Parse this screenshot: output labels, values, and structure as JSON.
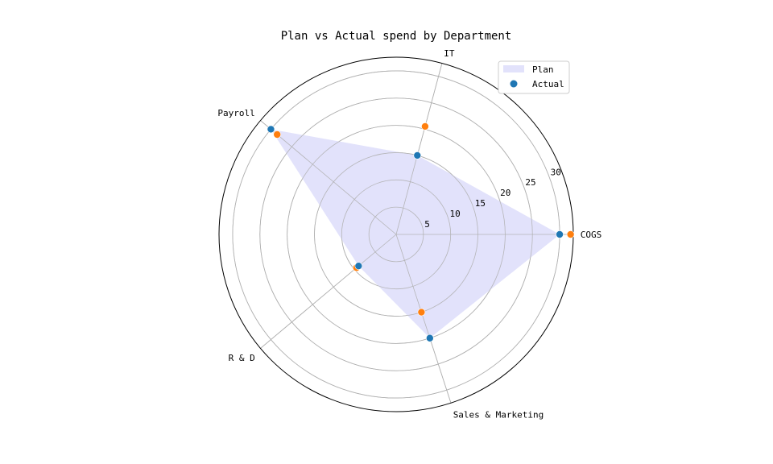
{
  "chart_data": {
    "type": "radar",
    "title": "Plan vs Actual spend by Department",
    "categories": [
      "COGS",
      "IT",
      "Payroll",
      "R & D",
      "Sales & Marketing"
    ],
    "angles_deg": [
      0,
      75,
      140,
      220,
      288
    ],
    "radial_ticks": [
      5,
      10,
      15,
      20,
      25,
      30
    ],
    "rmax": 32.5,
    "series": [
      {
        "name": "Plan",
        "kind": "filled-area",
        "color": "#e2e2fb",
        "values": [
          30,
          15,
          30,
          9,
          20
        ]
      },
      {
        "name": "Actual",
        "kind": "scatter",
        "color": "#1f77b4",
        "values": [
          30,
          15,
          30,
          9,
          20
        ]
      },
      {
        "kind": "scatter",
        "color": "#ff7f0e",
        "values": [
          32,
          20.5,
          28.5,
          9.5,
          15
        ]
      }
    ],
    "legend": {
      "position": "top-right",
      "entries": [
        "Plan",
        "Actual"
      ]
    },
    "grid": true
  }
}
